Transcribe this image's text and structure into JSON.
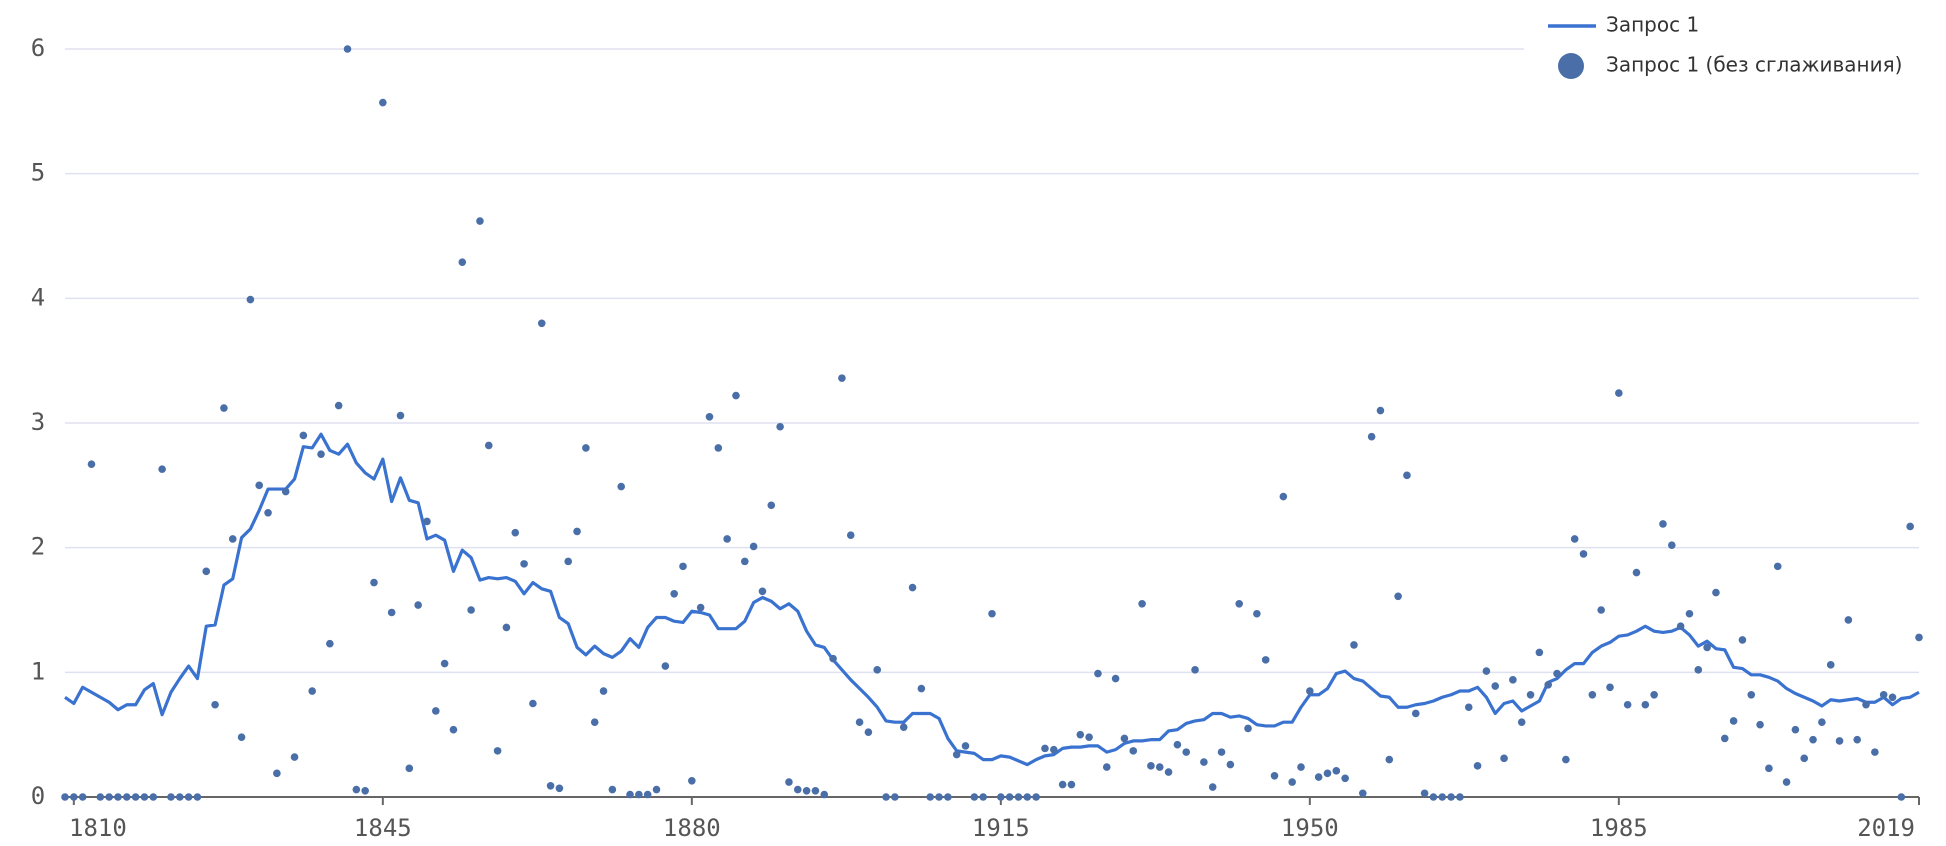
{
  "chart_data": {
    "type": "line",
    "x": [
      1809,
      1810,
      1811,
      1812,
      1813,
      1814,
      1815,
      1816,
      1817,
      1818,
      1819,
      1820,
      1821,
      1822,
      1823,
      1824,
      1825,
      1826,
      1827,
      1828,
      1829,
      1830,
      1831,
      1832,
      1833,
      1834,
      1835,
      1836,
      1837,
      1838,
      1839,
      1840,
      1841,
      1842,
      1843,
      1844,
      1845,
      1846,
      1847,
      1848,
      1849,
      1850,
      1851,
      1852,
      1853,
      1854,
      1855,
      1856,
      1857,
      1858,
      1859,
      1860,
      1861,
      1862,
      1863,
      1864,
      1865,
      1866,
      1867,
      1868,
      1869,
      1870,
      1871,
      1872,
      1873,
      1874,
      1875,
      1876,
      1877,
      1878,
      1879,
      1880,
      1881,
      1882,
      1883,
      1884,
      1885,
      1886,
      1887,
      1888,
      1889,
      1890,
      1891,
      1892,
      1893,
      1894,
      1895,
      1896,
      1897,
      1898,
      1899,
      1900,
      1901,
      1902,
      1903,
      1904,
      1905,
      1906,
      1907,
      1908,
      1909,
      1910,
      1911,
      1912,
      1913,
      1914,
      1915,
      1916,
      1917,
      1918,
      1919,
      1920,
      1921,
      1922,
      1923,
      1924,
      1925,
      1926,
      1927,
      1928,
      1929,
      1930,
      1931,
      1932,
      1933,
      1934,
      1935,
      1936,
      1937,
      1938,
      1939,
      1940,
      1941,
      1942,
      1943,
      1944,
      1945,
      1946,
      1947,
      1948,
      1949,
      1950,
      1951,
      1952,
      1953,
      1954,
      1955,
      1956,
      1957,
      1958,
      1959,
      1960,
      1961,
      1962,
      1963,
      1964,
      1965,
      1966,
      1967,
      1968,
      1969,
      1970,
      1971,
      1972,
      1973,
      1974,
      1975,
      1976,
      1977,
      1978,
      1979,
      1980,
      1981,
      1982,
      1983,
      1984,
      1985,
      1986,
      1987,
      1988,
      1989,
      1990,
      1991,
      1992,
      1993,
      1994,
      1995,
      1996,
      1997,
      1998,
      1999,
      2000,
      2001,
      2002,
      2003,
      2004,
      2005,
      2006,
      2007,
      2008,
      2009,
      2010,
      2011,
      2012,
      2013,
      2014,
      2015,
      2016,
      2017,
      2018,
      2019
    ],
    "series": [
      {
        "name": "Запрос 1",
        "type": "line",
        "color": "#3a72d0",
        "values": [
          0.8,
          0.75,
          0.88,
          0.84,
          0.8,
          0.76,
          0.7,
          0.74,
          0.74,
          0.86,
          0.91,
          0.66,
          0.84,
          0.95,
          1.05,
          0.95,
          1.37,
          1.38,
          1.7,
          1.75,
          2.08,
          2.15,
          2.3,
          2.47,
          2.47,
          2.47,
          2.55,
          2.81,
          2.8,
          2.91,
          2.78,
          2.75,
          2.83,
          2.68,
          2.6,
          2.55,
          2.71,
          2.37,
          2.56,
          2.38,
          2.36,
          2.07,
          2.1,
          2.06,
          1.81,
          1.98,
          1.92,
          1.74,
          1.76,
          1.75,
          1.76,
          1.73,
          1.63,
          1.72,
          1.67,
          1.65,
          1.44,
          1.39,
          1.2,
          1.14,
          1.21,
          1.15,
          1.12,
          1.17,
          1.27,
          1.2,
          1.36,
          1.44,
          1.44,
          1.41,
          1.4,
          1.49,
          1.48,
          1.46,
          1.35,
          1.35,
          1.35,
          1.41,
          1.56,
          1.6,
          1.57,
          1.51,
          1.55,
          1.49,
          1.33,
          1.22,
          1.2,
          1.1,
          1.02,
          0.94,
          0.87,
          0.8,
          0.72,
          0.61,
          0.6,
          0.6,
          0.67,
          0.67,
          0.67,
          0.63,
          0.47,
          0.37,
          0.36,
          0.35,
          0.3,
          0.3,
          0.33,
          0.32,
          0.29,
          0.26,
          0.3,
          0.33,
          0.34,
          0.39,
          0.4,
          0.4,
          0.41,
          0.41,
          0.36,
          0.38,
          0.43,
          0.45,
          0.45,
          0.46,
          0.46,
          0.53,
          0.54,
          0.59,
          0.61,
          0.62,
          0.67,
          0.67,
          0.64,
          0.65,
          0.63,
          0.58,
          0.57,
          0.57,
          0.6,
          0.6,
          0.72,
          0.82,
          0.82,
          0.87,
          0.99,
          1.01,
          0.95,
          0.93,
          0.87,
          0.81,
          0.8,
          0.72,
          0.72,
          0.74,
          0.75,
          0.77,
          0.8,
          0.82,
          0.85,
          0.85,
          0.88,
          0.8,
          0.67,
          0.75,
          0.77,
          0.69,
          0.73,
          0.77,
          0.92,
          0.95,
          1.02,
          1.07,
          1.07,
          1.16,
          1.21,
          1.24,
          1.29,
          1.3,
          1.33,
          1.37,
          1.33,
          1.32,
          1.33,
          1.36,
          1.3,
          1.21,
          1.25,
          1.19,
          1.18,
          1.04,
          1.03,
          0.98,
          0.98,
          0.96,
          0.93,
          0.87,
          0.83,
          0.8,
          0.77,
          0.73,
          0.78,
          0.77,
          0.78,
          0.79,
          0.76,
          0.76,
          0.8,
          0.74,
          0.79,
          0.8,
          0.84
        ]
      },
      {
        "name": "Запрос 1 (без сглаживания)",
        "type": "scatter",
        "color": "#4a6fa8",
        "values": [
          0,
          0,
          0,
          2.67,
          0,
          0,
          0,
          0,
          0,
          0,
          0,
          2.63,
          0,
          0,
          0,
          0,
          1.81,
          0.74,
          3.12,
          2.07,
          0.48,
          3.99,
          2.5,
          2.28,
          0.19,
          2.45,
          0.32,
          2.9,
          0.85,
          2.75,
          1.23,
          3.14,
          6.0,
          0.06,
          0.05,
          1.72,
          5.57,
          1.48,
          3.06,
          0.23,
          1.54,
          2.21,
          0.69,
          1.07,
          0.54,
          4.29,
          1.5,
          4.62,
          2.82,
          0.37,
          1.36,
          2.12,
          1.87,
          0.75,
          3.8,
          0.09,
          0.07,
          1.89,
          2.13,
          2.8,
          0.6,
          0.85,
          0.06,
          2.49,
          0.02,
          0.02,
          0.02,
          0.06,
          1.05,
          1.63,
          1.85,
          0.13,
          1.52,
          3.05,
          2.8,
          2.07,
          3.22,
          1.89,
          2.01,
          1.65,
          2.34,
          2.97,
          0.12,
          0.06,
          0.05,
          0.05,
          0.02,
          1.11,
          3.36,
          2.1,
          0.6,
          0.52,
          1.02,
          0,
          0,
          0.56,
          1.68,
          0.87,
          0,
          0,
          0,
          0.34,
          0.41,
          0,
          0,
          1.47,
          0,
          0,
          0,
          0,
          0,
          0.39,
          0.38,
          0.1,
          0.1,
          0.5,
          0.48,
          0.99,
          0.24,
          0.95,
          0.47,
          0.37,
          1.55,
          0.25,
          0.24,
          0.2,
          0.42,
          0.36,
          1.02,
          0.28,
          0.08,
          0.36,
          0.26,
          1.55,
          0.55,
          1.47,
          1.1,
          0.17,
          2.41,
          0.12,
          0.24,
          0.85,
          0.16,
          0.19,
          0.21,
          0.15,
          1.22,
          0.03,
          2.89,
          3.1,
          0.3,
          1.61,
          2.58,
          0.67,
          0.03,
          0,
          0,
          0,
          0,
          0.72,
          0.25,
          1.01,
          0.89,
          0.31,
          0.94,
          0.6,
          0.82,
          1.16,
          0.9,
          0.99,
          0.3,
          2.07,
          1.95,
          0.82,
          1.5,
          0.88,
          3.24,
          0.74,
          1.8,
          0.74,
          0.82,
          2.19,
          2.02,
          1.37,
          1.47,
          1.02,
          1.2,
          1.64,
          0.47,
          0.61,
          1.26,
          0.82,
          0.58,
          0.23,
          1.85,
          0.12,
          0.54,
          0.31,
          0.46,
          0.6,
          1.06,
          0.45,
          1.42,
          0.46,
          0.74,
          0.36,
          0.82,
          0.8,
          0,
          2.17,
          1.28
        ]
      }
    ],
    "xlim": [
      1809,
      2019
    ],
    "xticks": [
      1810,
      1845,
      1880,
      1915,
      1950,
      1985,
      2019
    ],
    "ylim": [
      0,
      6
    ],
    "yticks": [
      0,
      1,
      2,
      3,
      4,
      5,
      6
    ],
    "grid": true,
    "legend": "top-right"
  }
}
